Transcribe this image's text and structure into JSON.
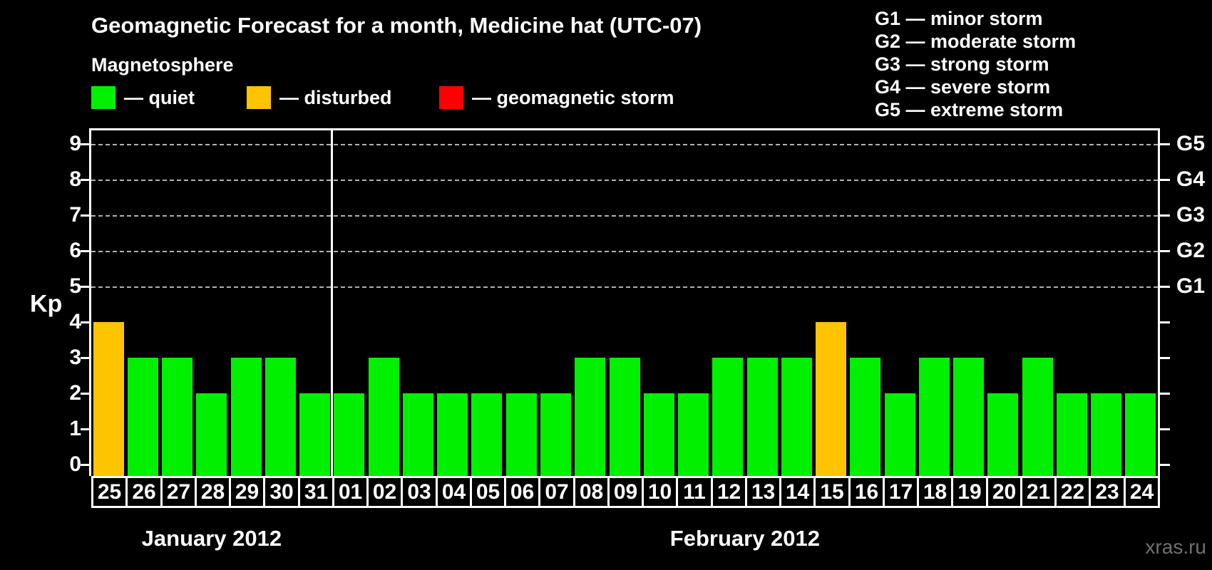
{
  "title": "Geomagnetic Forecast for a month, Medicine hat (UTC-07)",
  "legend": {
    "heading": "Magnetosphere",
    "items": [
      {
        "key": "quiet",
        "label": "— quiet",
        "color": "#00f000"
      },
      {
        "key": "disturbed",
        "label": "— disturbed",
        "color": "#ffc400"
      },
      {
        "key": "storm",
        "label": "— geomagnetic storm",
        "color": "#ff0000"
      }
    ]
  },
  "g_scale_legend": [
    "G1 — minor storm",
    "G2 — moderate storm",
    "G3 — strong storm",
    "G4 — severe storm",
    "G5 — extreme storm"
  ],
  "watermark": "xras.ru",
  "colors": {
    "background": "#000000",
    "axis": "#ffffff",
    "grid": "#b0b0b0",
    "quiet": "#00f000",
    "disturbed": "#ffc400",
    "storm": "#ff0000",
    "watermark": "#707070"
  },
  "chart_data": {
    "type": "bar",
    "title": "Geomagnetic Forecast for a month, Medicine hat (UTC-07)",
    "ylabel": "Kp",
    "ylim": [
      0,
      9
    ],
    "yticks": [
      0,
      1,
      2,
      3,
      4,
      5,
      6,
      7,
      8,
      9
    ],
    "grid_levels_kp": [
      5,
      6,
      7,
      8,
      9
    ],
    "right_axis": [
      {
        "kp": 5,
        "label": "G1"
      },
      {
        "kp": 6,
        "label": "G2"
      },
      {
        "kp": 7,
        "label": "G3"
      },
      {
        "kp": 8,
        "label": "G4"
      },
      {
        "kp": 9,
        "label": "G5"
      }
    ],
    "months": [
      {
        "label": "January 2012",
        "start_index": 0,
        "num_days": 7
      },
      {
        "label": "February 2012",
        "start_index": 7,
        "num_days": 24
      }
    ],
    "points": [
      {
        "day": "25",
        "kp": 4,
        "status": "disturbed"
      },
      {
        "day": "26",
        "kp": 3,
        "status": "quiet"
      },
      {
        "day": "27",
        "kp": 3,
        "status": "quiet"
      },
      {
        "day": "28",
        "kp": 2,
        "status": "quiet"
      },
      {
        "day": "29",
        "kp": 3,
        "status": "quiet"
      },
      {
        "day": "30",
        "kp": 3,
        "status": "quiet"
      },
      {
        "day": "31",
        "kp": 2,
        "status": "quiet"
      },
      {
        "day": "01",
        "kp": 2,
        "status": "quiet"
      },
      {
        "day": "02",
        "kp": 3,
        "status": "quiet"
      },
      {
        "day": "03",
        "kp": 2,
        "status": "quiet"
      },
      {
        "day": "04",
        "kp": 2,
        "status": "quiet"
      },
      {
        "day": "05",
        "kp": 2,
        "status": "quiet"
      },
      {
        "day": "06",
        "kp": 2,
        "status": "quiet"
      },
      {
        "day": "07",
        "kp": 2,
        "status": "quiet"
      },
      {
        "day": "08",
        "kp": 3,
        "status": "quiet"
      },
      {
        "day": "09",
        "kp": 3,
        "status": "quiet"
      },
      {
        "day": "10",
        "kp": 2,
        "status": "quiet"
      },
      {
        "day": "11",
        "kp": 2,
        "status": "quiet"
      },
      {
        "day": "12",
        "kp": 3,
        "status": "quiet"
      },
      {
        "day": "13",
        "kp": 3,
        "status": "quiet"
      },
      {
        "day": "14",
        "kp": 3,
        "status": "quiet"
      },
      {
        "day": "15",
        "kp": 4,
        "status": "disturbed"
      },
      {
        "day": "16",
        "kp": 3,
        "status": "quiet"
      },
      {
        "day": "17",
        "kp": 2,
        "status": "quiet"
      },
      {
        "day": "18",
        "kp": 3,
        "status": "quiet"
      },
      {
        "day": "19",
        "kp": 3,
        "status": "quiet"
      },
      {
        "day": "20",
        "kp": 2,
        "status": "quiet"
      },
      {
        "day": "21",
        "kp": 3,
        "status": "quiet"
      },
      {
        "day": "22",
        "kp": 2,
        "status": "quiet"
      },
      {
        "day": "23",
        "kp": 2,
        "status": "quiet"
      },
      {
        "day": "24",
        "kp": 2,
        "status": "quiet"
      }
    ]
  }
}
